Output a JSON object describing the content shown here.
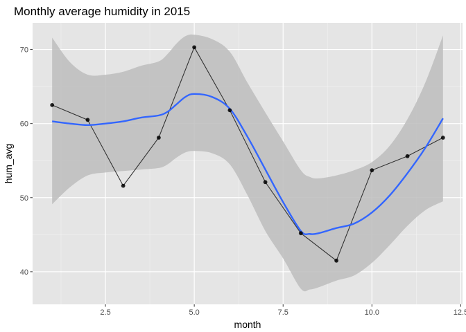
{
  "chart_data": {
    "type": "line",
    "title": "Monthly average humidity in 2015",
    "xlabel": "month",
    "ylabel": "hum_avg",
    "xlim": [
      0.45,
      12.55
    ],
    "ylim": [
      35.6,
      73.6
    ],
    "x_ticks": [
      2.5,
      5.0,
      7.5,
      10.0,
      12.5
    ],
    "x_tick_labels": [
      "2.5",
      "5.0",
      "7.5",
      "10.0",
      "12.5"
    ],
    "y_ticks": [
      40,
      50,
      60,
      70
    ],
    "y_tick_labels": [
      "40",
      "50",
      "60",
      "70"
    ],
    "grid": true,
    "background": "#e5e5e5",
    "series": [
      {
        "type": "line+points",
        "color": "#333333",
        "x": [
          1,
          2,
          3,
          4,
          5,
          6,
          7,
          8,
          9,
          10,
          11,
          12
        ],
        "values": [
          62.5,
          60.5,
          51.6,
          58.1,
          70.3,
          61.8,
          52.1,
          45.2,
          41.5,
          53.7,
          55.6,
          58.1
        ]
      },
      {
        "type": "smooth",
        "color": "#3366ff",
        "x": [
          1,
          1.5,
          2,
          2.5,
          3,
          3.5,
          4,
          4.25,
          4.5,
          4.75,
          5,
          5.5,
          6,
          6.5,
          7,
          7.5,
          8,
          8.25,
          8.5,
          9,
          9.5,
          10,
          10.5,
          11,
          11.5,
          12
        ],
        "values": [
          60.3,
          60.0,
          59.8,
          60.0,
          60.3,
          60.8,
          61.1,
          61.6,
          62.6,
          63.6,
          64.0,
          63.6,
          62.0,
          58.2,
          53.8,
          49.4,
          45.5,
          45.1,
          45.2,
          45.9,
          46.5,
          48.0,
          50.3,
          53.3,
          56.7,
          60.7
        ]
      }
    ],
    "confidence_band": {
      "color": "#bdbdbd",
      "x": [
        1,
        1.5,
        2,
        2.5,
        3,
        3.5,
        4,
        4.25,
        4.5,
        4.75,
        5,
        5.5,
        6,
        6.5,
        7,
        7.5,
        8,
        8.25,
        8.5,
        9,
        9.5,
        10,
        10.5,
        11,
        11.5,
        12
      ],
      "upper": [
        71.6,
        68.3,
        66.6,
        66.6,
        67.0,
        67.8,
        68.4,
        69.4,
        70.8,
        71.8,
        72.0,
        71.4,
        69.7,
        65.5,
        61.5,
        57.6,
        53.7,
        52.8,
        52.6,
        53.0,
        53.7,
        54.8,
        57.0,
        60.6,
        65.5,
        71.9
      ],
      "lower": [
        49.1,
        51.4,
        53.0,
        53.4,
        53.6,
        53.8,
        54.0,
        54.5,
        55.4,
        56.1,
        56.3,
        56.0,
        54.5,
        50.3,
        45.5,
        41.8,
        37.7,
        37.6,
        37.9,
        38.8,
        39.5,
        41.2,
        43.6,
        46.2,
        48.3,
        49.5
      ]
    }
  }
}
